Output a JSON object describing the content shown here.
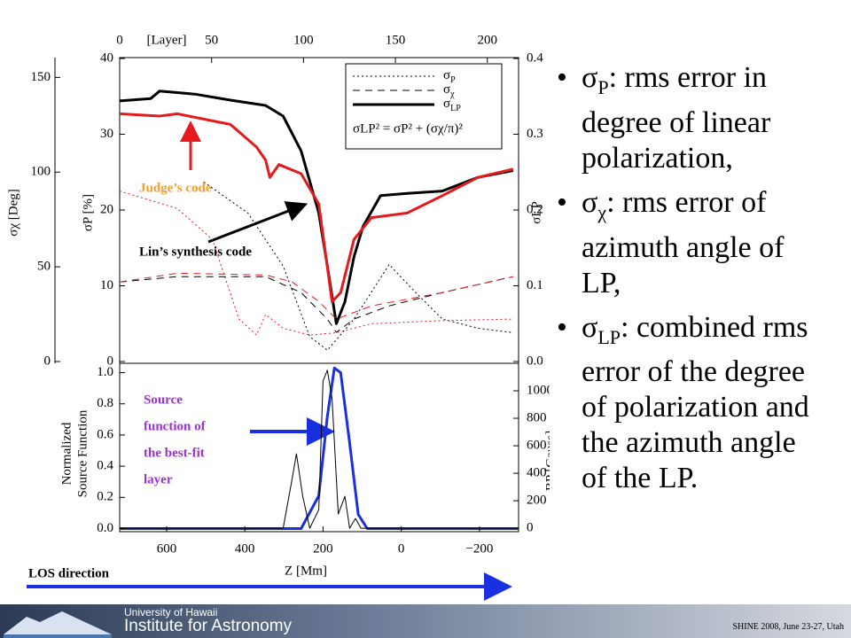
{
  "chart_data": [
    {
      "type": "line",
      "x2label": "[Layer]",
      "x2lim": [
        0,
        217
      ],
      "x2ticks": [
        0,
        50,
        100,
        150,
        200
      ],
      "xlim": [
        720,
        -300
      ],
      "ylabel": "σP [%]",
      "ylim": [
        0,
        40
      ],
      "yticks": [
        0,
        10,
        20,
        30,
        40
      ],
      "y2label": "σLP",
      "y2lim": [
        0,
        0.4
      ],
      "y2ticks": [
        {
          "value": 0,
          "label": "0.0"
        },
        0.1,
        0.2,
        0.3,
        0.4
      ],
      "y3label": "σχ [Deg]",
      "y3lim": [
        0,
        160
      ],
      "y3ticks": [
        0,
        50,
        100,
        150
      ],
      "legend": [
        {
          "style": "dotted",
          "symbol": "σ",
          "subscript": "P"
        },
        {
          "style": "dashed",
          "symbol": "σ",
          "subscript": "χ"
        },
        {
          "style": "thick",
          "symbol": "σ",
          "subscript": "LP"
        }
      ],
      "legend_formula": "σLP² = σP² + (σχ/π)²",
      "annotations": [
        {
          "text": "Judge’s code",
          "color": "#f0a030"
        },
        {
          "text": "Lin’s synthesis code",
          "color": "#000000"
        }
      ],
      "series": [
        {
          "color": "#000000",
          "style": "thick",
          "axis": "y2",
          "x": [
            720,
            641,
            618,
            528,
            437,
            347,
            302,
            256,
            211,
            189,
            166,
            144,
            121,
            98,
            53,
            -15,
            -105,
            -196,
            -286
          ],
          "values": [
            0.344,
            0.347,
            0.357,
            0.353,
            0.345,
            0.338,
            0.324,
            0.278,
            0.196,
            0.126,
            0.05,
            0.079,
            0.138,
            0.178,
            0.219,
            0.222,
            0.225,
            0.243,
            0.252
          ]
        },
        {
          "color": "#e41a1c",
          "style": "thick",
          "axis": "y2",
          "x": [
            720,
            618,
            573,
            437,
            370,
            347,
            336,
            313,
            256,
            211,
            177,
            155,
            121,
            76,
            -15,
            -105,
            -196,
            -286
          ],
          "values": [
            0.327,
            0.324,
            0.327,
            0.313,
            0.283,
            0.266,
            0.243,
            0.26,
            0.248,
            0.208,
            0.079,
            0.091,
            0.161,
            0.19,
            0.196,
            0.219,
            0.243,
            0.254
          ]
        },
        {
          "color": "#000000",
          "style": "dotted",
          "axis": "y",
          "x": [
            505,
            392,
            302,
            234,
            189,
            121,
            31,
            -37,
            -105,
            -196,
            -286
          ],
          "values": [
            23.7,
            19.6,
            12.6,
            3.3,
            1.5,
            5.6,
            12.8,
            9.1,
            5.6,
            4.4,
            3.8
          ]
        },
        {
          "color": "#e41a1c",
          "style": "dotted",
          "axis": "y",
          "x": [
            720,
            573,
            483,
            415,
            370,
            347,
            302,
            234,
            166,
            76,
            -105,
            -286
          ],
          "values": [
            22.5,
            20.2,
            16.1,
            5.6,
            3.5,
            6.2,
            4.4,
            3.5,
            3.8,
            5.0,
            5.4,
            5.6
          ]
        },
        {
          "color": "#000000",
          "style": "dashed",
          "axis": "y3",
          "x": [
            720,
            573,
            347,
            256,
            189,
            166,
            121,
            31,
            -105,
            -286
          ],
          "values": [
            42.0,
            44.8,
            44.8,
            36.4,
            22.4,
            15.4,
            22.4,
            29.4,
            36.4,
            44.8
          ]
        },
        {
          "color": "#e41a1c",
          "style": "dashed",
          "axis": "y3",
          "x": [
            720,
            573,
            347,
            279,
            211,
            166,
            76,
            -105,
            -286
          ],
          "values": [
            42.0,
            46.6,
            45.7,
            42.0,
            31.7,
            22.4,
            29.4,
            36.4,
            44.8
          ]
        }
      ]
    },
    {
      "type": "line",
      "xlabel": "Z [Mm]",
      "xlim": [
        720,
        -300
      ],
      "xticks": [
        600,
        400,
        200,
        0,
        {
          "value": -200,
          "label": "−200"
        }
      ],
      "ylabel": [
        "Normalized",
        "Source Function"
      ],
      "ylim": [
        -0.02,
        1.06
      ],
      "yticks": [
        {
          "value": 0,
          "label": "0.0"
        },
        0.2,
        0.4,
        0.6,
        0.8,
        {
          "value": 1,
          "label": "1.0"
        }
      ],
      "y2label": "BP [Gauss]",
      "y2lim": [
        -25,
        1200
      ],
      "y2ticks": [
        0,
        200,
        400,
        600,
        800,
        1000
      ],
      "annotation": {
        "lines": [
          "Source",
          "function of",
          "the best-fit",
          "layer"
        ],
        "color": "#9933cc"
      },
      "direction_label": "LOS direction",
      "series": [
        {
          "color": "#1a2fe0",
          "style": "thick",
          "axis": "y",
          "x": [
            720,
            256,
            211,
            189,
            171,
            155,
            132,
            110,
            87,
            -300
          ],
          "values": [
            0,
            0,
            0.21,
            0.72,
            1.03,
            1.0,
            0.55,
            0.09,
            0,
            0
          ]
        },
        {
          "color": "#000000",
          "style": "thin",
          "axis": "y2",
          "x": [
            720,
            302,
            279,
            268,
            252,
            234,
            211,
            200,
            189,
            177,
            161,
            144,
            132,
            117,
            103,
            80,
            -300
          ],
          "values": [
            0,
            0,
            361,
            542,
            232,
            0,
            135,
            1071,
            1150,
            942,
            103,
            232,
            0,
            71,
            0,
            0,
            0
          ]
        }
      ]
    }
  ],
  "bullets": [
    {
      "symbol": "σ",
      "subscript": "P",
      "text": ": rms error in degree of linear polarization,"
    },
    {
      "symbol": "σ",
      "subscript": "χ",
      "text": ": rms error of azimuth angle of LP,"
    },
    {
      "symbol": "σ",
      "subscript": "LP",
      "text": ": combined rms error of the degree of polarization and the azimuth angle of the LP."
    }
  ],
  "footer": {
    "university": "University of Hawaii",
    "institute": "Institute for Astronomy",
    "event": "SHINE 2008, June 23-27, Utah"
  }
}
